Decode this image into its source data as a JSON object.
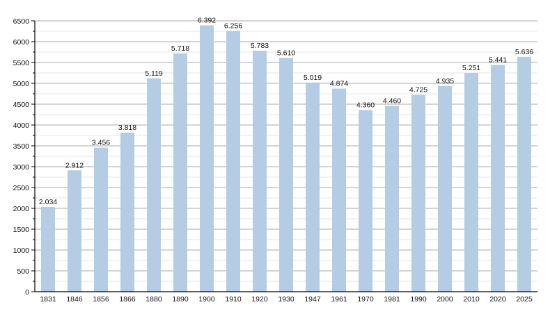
{
  "chart_data": {
    "type": "bar",
    "title": "",
    "xlabel": "",
    "ylabel": "",
    "ylim": [
      0,
      6500
    ],
    "ytick_step": 500,
    "minor_step": 250,
    "grid": true,
    "bar_color": "#b4cce4",
    "categories": [
      "1831",
      "1846",
      "1856",
      "1866",
      "1880",
      "1890",
      "1900",
      "1910",
      "1920",
      "1930",
      "1947",
      "1961",
      "1970",
      "1981",
      "1990",
      "2000",
      "2010",
      "2020",
      "2025"
    ],
    "values": [
      2034,
      2912,
      3456,
      3818,
      5119,
      5718,
      6392,
      6256,
      5783,
      5610,
      5019,
      4874,
      4360,
      4460,
      4725,
      4935,
      5251,
      5441,
      5636
    ],
    "data_labels": [
      "2.034",
      "2.912",
      "3.456",
      "3.818",
      "5.119",
      "5.718",
      "6.392",
      "6.256",
      "5.783",
      "5.610",
      "5.019",
      "4.874",
      "4.360",
      "4.460",
      "4.725",
      "4.935",
      "5.251",
      "5.441",
      "5.636"
    ]
  }
}
